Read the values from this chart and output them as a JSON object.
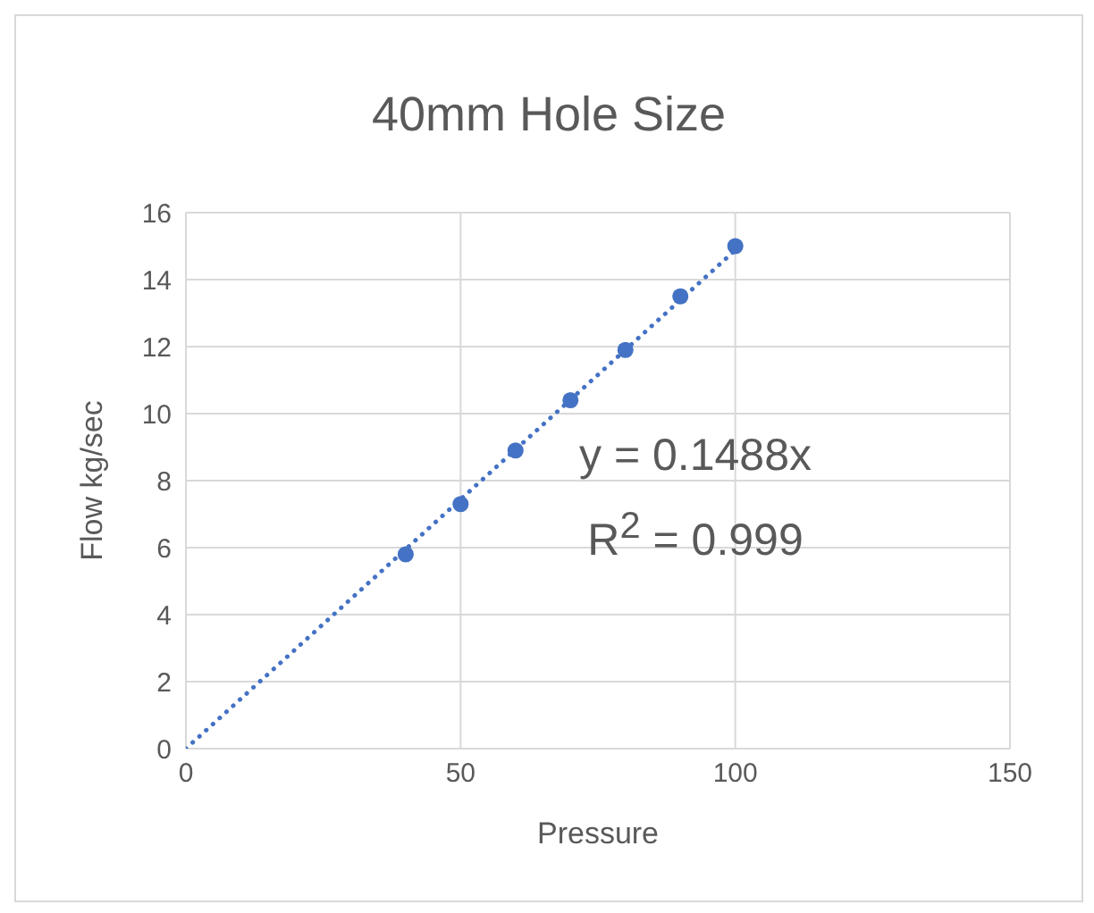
{
  "chart_data": {
    "type": "scatter",
    "title": "40mm Hole Size",
    "xlabel": "Pressure",
    "ylabel": "Flow kg/sec",
    "series": [
      {
        "color": "#4472c4",
        "x": [
          40,
          50,
          60,
          70,
          80,
          90,
          100
        ],
        "values": [
          5.8,
          7.3,
          8.9,
          10.4,
          11.9,
          13.5,
          15
        ],
        "marker": "circle"
      },
      {
        "type": "line",
        "color": "#4472c4",
        "x": [
          0,
          100
        ],
        "values": [
          0,
          14.88
        ],
        "marker": "none",
        "line_style": "dotted"
      }
    ],
    "annotations": [
      "y = 0.1488x",
      "R$^{2}$ = 0.999"
    ],
    "xlim": [
      0,
      150
    ],
    "xticks": [
      0,
      50,
      100,
      150
    ],
    "ylim": [
      0,
      16
    ],
    "yticks": [
      0,
      2,
      4,
      6,
      8,
      10,
      12,
      14,
      16
    ],
    "grid": true
  }
}
